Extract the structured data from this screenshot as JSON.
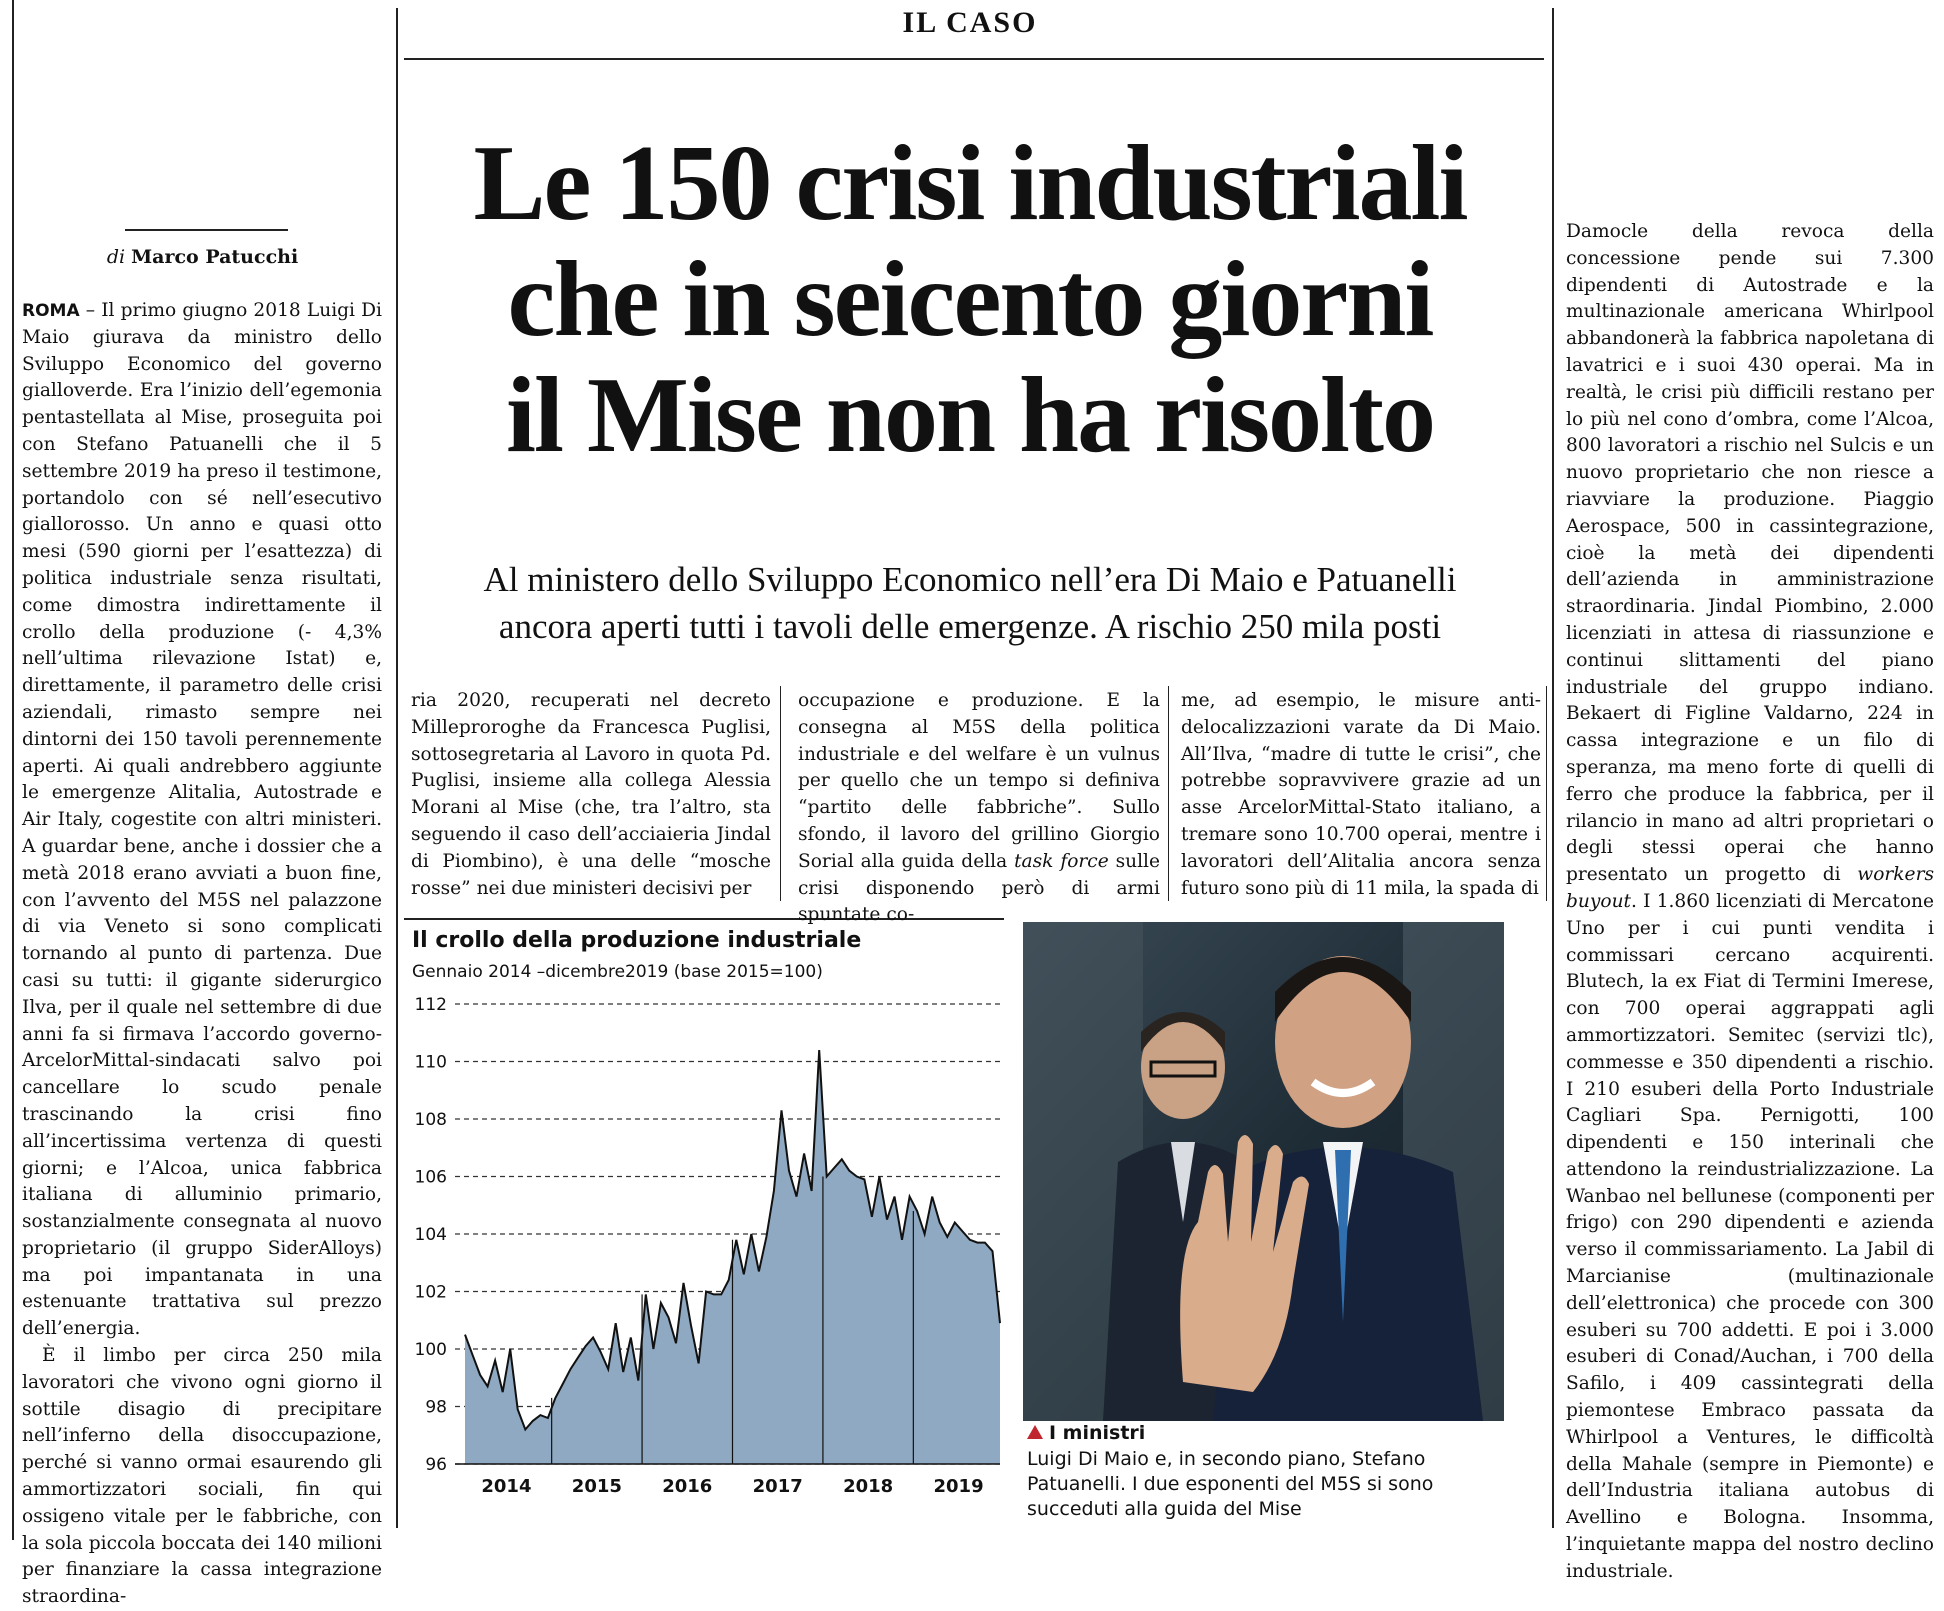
{
  "section": "IL CASO",
  "headline": [
    "Le 150 crisi industriali",
    "che in seicento giorni",
    "il Mise non ha risolto"
  ],
  "subhead": [
    "Al ministero dello Sviluppo Economico nell’era Di Maio e Patuanelli",
    "ancora aperti tutti i tavoli delle emergenze. A rischio 250 mila posti"
  ],
  "byline": {
    "prefix": "di",
    "author": "Marco Patucchi"
  },
  "col1": {
    "dateline": "ROMA",
    "p1": " – Il primo giugno 2018 Luigi Di Maio giurava da ministro dello Sviluppo Economico del governo gialloverde. Era l’inizio dell’egemonia pentastellata al Mise, proseguita poi con Stefano Patuanelli che il 5 settembre 2019 ha preso il testimone, portandolo con sé nell’esecutivo giallorosso. Un anno e quasi otto mesi (590 giorni per l’esattezza) di politica industriale senza risultati, come dimostra indirettamente il crollo della produzione (- 4,3% nell’ultima rilevazione Istat) e, direttamente, il parametro delle crisi aziendali, rimasto sempre nei dintorni dei 150 tavoli perennemente aperti. Ai quali andrebbero aggiunte le emergenze Alitalia, Autostrade e Air Italy, cogestite con altri ministeri. A guardar bene, anche i dossier che a metà 2018 erano avviati a buon fine, con l’avvento del M5S nel palazzone di via Veneto si sono complicati tornando al punto di partenza. Due casi su tutti: il gigante siderurgico Ilva, per il quale nel settembre di due anni fa si firmava l’accordo governo-ArcelorMittal-sindacati salvo poi cancellare lo scudo penale trascinando la crisi fino all’incertissima vertenza di questi giorni; e l’Alcoa, unica fabbrica italiana di alluminio primario, sostanzialmente consegnata al nuovo proprietario (il gruppo SiderAlloys) ma poi impantanata in una estenuante trattativa sul prezzo dell’energia.",
    "p2": "È il limbo per circa 250 mila lavoratori che vivono ogni giorno il sottile disagio di precipitare nell’inferno della disoccupazione, perché si vanno ormai esaurendo gli ammortizzatori sociali, fin qui ossigeno vitale per le fabbriche, con la sola piccola boccata dei 140 milioni per finanziare la cassa integrazione straordina-"
  },
  "col2": "ria 2020, recuperati nel decreto Milleproroghe da Francesca Puglisi, sottosegretaria al Lavoro in quota Pd. Puglisi, insieme alla collega Alessia Morani al Mise (che, tra l’altro, sta seguendo il caso dell’acciaieria Jindal di Piombino), è una delle “mosche rosse” nei due ministeri decisivi per",
  "col3": {
    "a": "occupazione e produzione. E la consegna al M5S della politica industriale e del welfare è un vulnus per quello che un tempo si definiva “partito delle fabbriche”. Sullo sfondo, il lavoro del grillino Giorgio Sorial alla guida della ",
    "em": "task force",
    "b": " sulle crisi disponendo però di armi spuntate co-"
  },
  "col4": "me, ad esempio, le misure anti-delocalizzazioni varate da Di Maio. All’Ilva, “madre di tutte le crisi”, che potrebbe sopravvivere grazie ad un asse ArcelorMittal-Stato italiano, a tremare sono 10.700 operai, mentre i lavoratori dell’Alitalia ancora senza futuro sono più di 11 mila, la spada di",
  "col5": {
    "a": "Damocle della revoca della concessione pende sui 7.300 dipendenti di Autostrade e la multinazionale americana Whirlpool abbandonerà la fabbrica napoletana di lavatrici e i suoi 430 operai. Ma in realtà, le crisi più difficili restano per lo più nel cono d’ombra, come l’Alcoa, 800 lavoratori a rischio nel Sulcis e un nuovo proprietario che non riesce a riavviare la produzione. Piaggio Aerospace, 500 in cassintegrazione, cioè la metà dei dipendenti dell’azienda in amministrazione straordinaria. Jindal Piombino, 2.000 licenziati in attesa di riassunzione e continui slittamenti del piano industriale del gruppo indiano. Bekaert di Figline Valdarno, 224 in cassa integrazione e un filo di speranza, ma meno forte di quelli di ferro che produce la fabbrica, per il rilancio in mano ad altri proprietari o degli stessi operai che hanno presentato un progetto di ",
    "em": "workers buyout",
    "b": ". I 1.860 licenziati di Mercatone Uno per i cui punti vendita i commissari cercano acquirenti. Blutech, la ex Fiat di Termini Imerese, con 700 operai aggrappati agli ammortizzatori. Semitec (servizi tlc), commesse e 350 dipendenti a rischio. I 210 esuberi della Porto Industriale Cagliari Spa. Pernigotti, 100 dipendenti e 150 interinali che attendono la reindustrializzazione. La Wanbao nel bellunese (componenti per frigo) con 290 dipendenti e azienda verso il commissariamento. La Jabil di Marcianise (multinazionale dell’elettronica) che procede con 300 esuberi su 700 addetti. E poi i 3.000 esuberi di Conad/Auchan, i 700 della Safilo, i 409 cassintegrati della piemontese Embraco passata da Whirlpool a Ventures, le difficoltà della Mahale (sempre in Piemonte) e dell’Industria italiana autobus di Avellino e Bologna. Insomma, l’inquietante mappa del nostro declino industriale."
  },
  "chart": {
    "title": "Il crollo della produzione industriale",
    "subtitle": "Gennaio 2014 –dicembre2019 (base 2015=100)"
  },
  "chart_data": {
    "type": "area",
    "title": "Il crollo della produzione industriale",
    "subtitle": "Gennaio 2014 –dicembre2019 (base 2015=100)",
    "x_tick_labels": [
      "2014",
      "2015",
      "2016",
      "2017",
      "2018",
      "2019"
    ],
    "y_tick_labels": [
      "96",
      "98",
      "100",
      "102",
      "104",
      "106",
      "108",
      "110",
      "112"
    ],
    "ylim": [
      96,
      112
    ],
    "grid": "horizontal-dashed",
    "color": "#8ea9c1",
    "series": [
      {
        "values": [
          100.5,
          99.8,
          99.1,
          98.7,
          99.6,
          98.5,
          100.0,
          97.9,
          97.2,
          97.5,
          97.7,
          97.6,
          98.3,
          98.8,
          99.3,
          99.7,
          100.1,
          100.4,
          99.9,
          99.3,
          100.9,
          99.2,
          100.4,
          98.9,
          101.9,
          100.0,
          101.6,
          101.1,
          100.2,
          102.3,
          100.8,
          99.5,
          102.0,
          101.9,
          101.9,
          102.4,
          103.8,
          102.6,
          104.0,
          102.7,
          103.9,
          105.5,
          108.3,
          106.2,
          105.3,
          106.8,
          105.5,
          110.4,
          106.0,
          106.3,
          106.6,
          106.2,
          106.0,
          105.9,
          104.6,
          106.0,
          104.5,
          105.3,
          103.8,
          105.3,
          104.8,
          104.0,
          105.3,
          104.4,
          103.9,
          104.4,
          104.1,
          103.8,
          103.7,
          103.7,
          103.4,
          100.9
        ]
      }
    ]
  },
  "caption": {
    "title": "I ministri",
    "text": "Luigi Di Maio e, in secondo piano, Stefano Patuanelli. I due esponenti del M5S si sono succeduti alla guida del Mise"
  },
  "colors": {
    "caption_marker": "#c0262d",
    "chart_fill": "#8ea9c1"
  },
  "photo": {
    "subject": "two men in dark suits, one waving his hand"
  }
}
